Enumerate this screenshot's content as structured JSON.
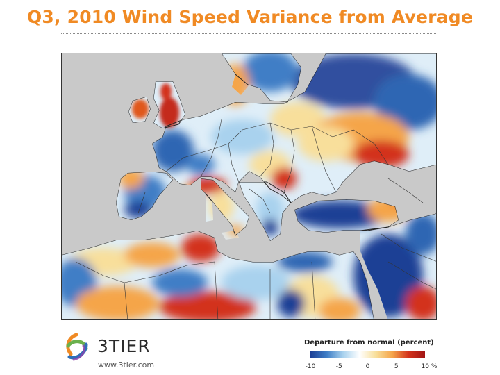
{
  "title": "Q3, 2010 Wind Speed Variance from Average",
  "brand": {
    "name": "3TIER",
    "url": "www.3tier.com"
  },
  "legend": {
    "title": "Departure from normal (percent)",
    "ticks": [
      "-10",
      "-5",
      "0",
      "5",
      "10 %"
    ],
    "tick_values": [
      -10,
      -5,
      0,
      5,
      10
    ],
    "colors": [
      "#1c3f95",
      "#3f7ec6",
      "#a9d2ee",
      "#ffffff",
      "#f8df9b",
      "#f5a54a",
      "#d3331c",
      "#a11515"
    ]
  },
  "map": {
    "land_color": "#ffffff",
    "water_color": "#c9c9c9",
    "border_color": "#333333"
  }
}
